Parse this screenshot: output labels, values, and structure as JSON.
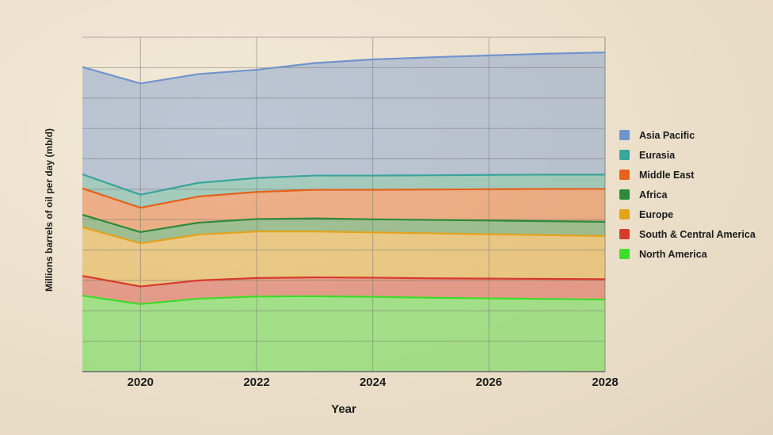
{
  "chart_data": {
    "type": "area",
    "stacked": true,
    "xlabel": "Year",
    "ylabel": "Millions barrels of oil per day (mb/d)",
    "x": [
      2019,
      2020,
      2021,
      2022,
      2023,
      2024,
      2025,
      2026,
      2027,
      2028
    ],
    "xticks": [
      2020,
      2022,
      2024,
      2026,
      2028
    ],
    "xlim": [
      2019,
      2028
    ],
    "ylim": [
      0,
      110
    ],
    "grid": true,
    "legend_position": "right",
    "series": [
      {
        "name": "North America",
        "color": "#3ddc2a",
        "values": [
          25.0,
          22.2,
          24.0,
          24.7,
          24.8,
          24.6,
          24.3,
          24.1,
          23.9,
          23.7
        ]
      },
      {
        "name": "South & Central America",
        "color": "#d63a2a",
        "values": [
          6.5,
          5.8,
          6.0,
          6.1,
          6.2,
          6.3,
          6.4,
          6.5,
          6.6,
          6.7
        ]
      },
      {
        "name": "Europe",
        "color": "#e3a21c",
        "values": [
          16.0,
          14.2,
          15.1,
          15.3,
          15.1,
          14.9,
          14.8,
          14.6,
          14.4,
          14.2
        ]
      },
      {
        "name": "Africa",
        "color": "#2e8a3a",
        "values": [
          4.1,
          3.7,
          3.9,
          4.1,
          4.3,
          4.3,
          4.4,
          4.5,
          4.6,
          4.7
        ]
      },
      {
        "name": "Middle East",
        "color": "#e4621c",
        "values": [
          8.7,
          8.0,
          8.6,
          8.9,
          9.4,
          9.7,
          10.0,
          10.3,
          10.6,
          10.8
        ]
      },
      {
        "name": "Eurasia",
        "color": "#3aa59a",
        "values": [
          4.6,
          4.3,
          4.5,
          4.6,
          4.7,
          4.7,
          4.7,
          4.7,
          4.7,
          4.7
        ]
      },
      {
        "name": "Asia Pacific",
        "color": "#7094cc",
        "values": [
          35.3,
          36.6,
          35.8,
          35.6,
          37.0,
          38.2,
          38.8,
          39.3,
          39.8,
          40.2
        ]
      }
    ]
  }
}
